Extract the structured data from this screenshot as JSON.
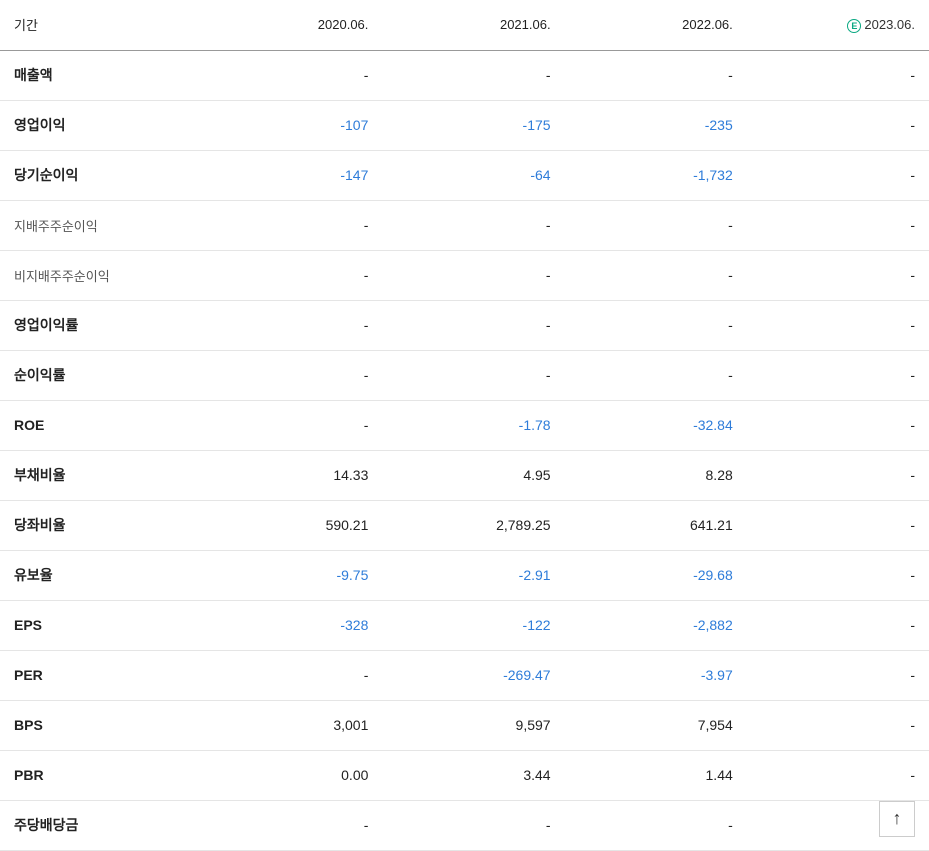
{
  "table": {
    "header": {
      "label": "기간",
      "periods": [
        "2020.06.",
        "2021.06.",
        "2022.06.",
        "2023.06."
      ],
      "estimate_index": 3,
      "estimate_badge": "E"
    },
    "rows": [
      {
        "label": "매출액",
        "style": "bold",
        "values": [
          "-",
          "-",
          "-",
          "-"
        ],
        "neg": [
          false,
          false,
          false,
          false
        ]
      },
      {
        "label": "영업이익",
        "style": "bold",
        "values": [
          "-107",
          "-175",
          "-235",
          "-"
        ],
        "neg": [
          true,
          true,
          true,
          false
        ]
      },
      {
        "label": "당기순이익",
        "style": "bold",
        "values": [
          "-147",
          "-64",
          "-1,732",
          "-"
        ],
        "neg": [
          true,
          true,
          true,
          false
        ]
      },
      {
        "label": "지배주주순이익",
        "style": "sub",
        "values": [
          "-",
          "-",
          "-",
          "-"
        ],
        "neg": [
          false,
          false,
          false,
          false
        ]
      },
      {
        "label": "비지배주주순이익",
        "style": "sub",
        "values": [
          "-",
          "-",
          "-",
          "-"
        ],
        "neg": [
          false,
          false,
          false,
          false
        ]
      },
      {
        "label": "영업이익률",
        "style": "bold",
        "values": [
          "-",
          "-",
          "-",
          "-"
        ],
        "neg": [
          false,
          false,
          false,
          false
        ]
      },
      {
        "label": "순이익률",
        "style": "bold",
        "values": [
          "-",
          "-",
          "-",
          "-"
        ],
        "neg": [
          false,
          false,
          false,
          false
        ]
      },
      {
        "label": "ROE",
        "style": "bold",
        "values": [
          "-",
          "-1.78",
          "-32.84",
          "-"
        ],
        "neg": [
          false,
          true,
          true,
          false
        ]
      },
      {
        "label": "부채비율",
        "style": "bold",
        "values": [
          "14.33",
          "4.95",
          "8.28",
          "-"
        ],
        "neg": [
          false,
          false,
          false,
          false
        ]
      },
      {
        "label": "당좌비율",
        "style": "bold",
        "values": [
          "590.21",
          "2,789.25",
          "641.21",
          "-"
        ],
        "neg": [
          false,
          false,
          false,
          false
        ]
      },
      {
        "label": "유보율",
        "style": "bold",
        "values": [
          "-9.75",
          "-2.91",
          "-29.68",
          "-"
        ],
        "neg": [
          true,
          true,
          true,
          false
        ]
      },
      {
        "label": "EPS",
        "style": "bold",
        "values": [
          "-328",
          "-122",
          "-2,882",
          "-"
        ],
        "neg": [
          true,
          true,
          true,
          false
        ]
      },
      {
        "label": "PER",
        "style": "bold",
        "values": [
          "-",
          "-269.47",
          "-3.97",
          "-"
        ],
        "neg": [
          false,
          true,
          true,
          false
        ]
      },
      {
        "label": "BPS",
        "style": "bold",
        "values": [
          "3,001",
          "9,597",
          "7,954",
          "-"
        ],
        "neg": [
          false,
          false,
          false,
          false
        ]
      },
      {
        "label": "PBR",
        "style": "bold",
        "values": [
          "0.00",
          "3.44",
          "1.44",
          "-"
        ],
        "neg": [
          false,
          false,
          false,
          false
        ]
      },
      {
        "label": "주당배당금",
        "style": "bold",
        "values": [
          "-",
          "-",
          "-",
          "-"
        ],
        "neg": [
          false,
          false,
          false,
          false
        ]
      }
    ]
  },
  "colors": {
    "negative": "#2e7cd9",
    "text": "#222222",
    "border": "#e5e5e5",
    "header_border": "#999999",
    "estimate": "#0aa882"
  }
}
